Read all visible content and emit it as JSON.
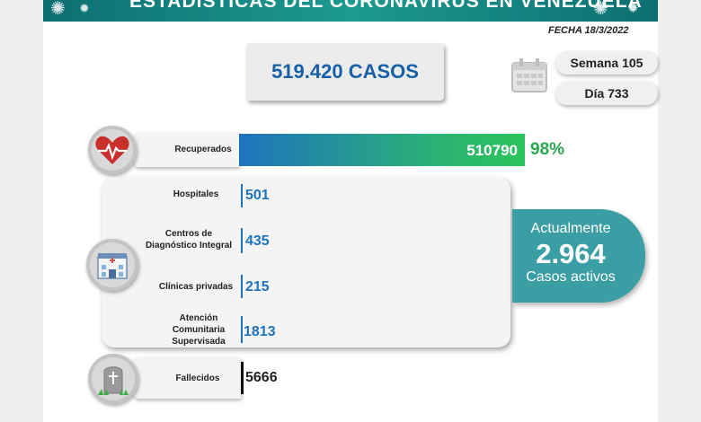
{
  "header": {
    "title": "ESTADÍSTICAS DEL CORONAVIRUS EN VENEZUELA",
    "date": "FECHA 18/3/2022"
  },
  "summary": {
    "total_cases": "519.420 CASOS",
    "week": "Semana 105",
    "day": "Día 733"
  },
  "recovered": {
    "label": "Recuperados",
    "value": "510790",
    "percent": "98%",
    "fill_fraction": 0.98
  },
  "hospitalization": [
    {
      "label": "Hospitales",
      "value": "501"
    },
    {
      "label": "Centros de Diagnóstico Integral",
      "value": "435"
    },
    {
      "label": "Clínicas privadas",
      "value": "215"
    },
    {
      "label": "Atención Comunitaria Supervisada",
      "value": "1813"
    }
  ],
  "active": {
    "line1": "Actualmente",
    "value": "2.964",
    "line2": "Casos activos"
  },
  "deaths": {
    "label": "Fallecidos",
    "value": "5666"
  },
  "icons": [
    "heart-pulse-icon",
    "hospital-icon",
    "tombstone-icon",
    "calendar-icon",
    "virus-icon"
  ],
  "colors": {
    "banner": "#1b9a8f",
    "blue": "#1e73be",
    "green": "#2cc35a",
    "active_bg": "#3a9ea4"
  }
}
